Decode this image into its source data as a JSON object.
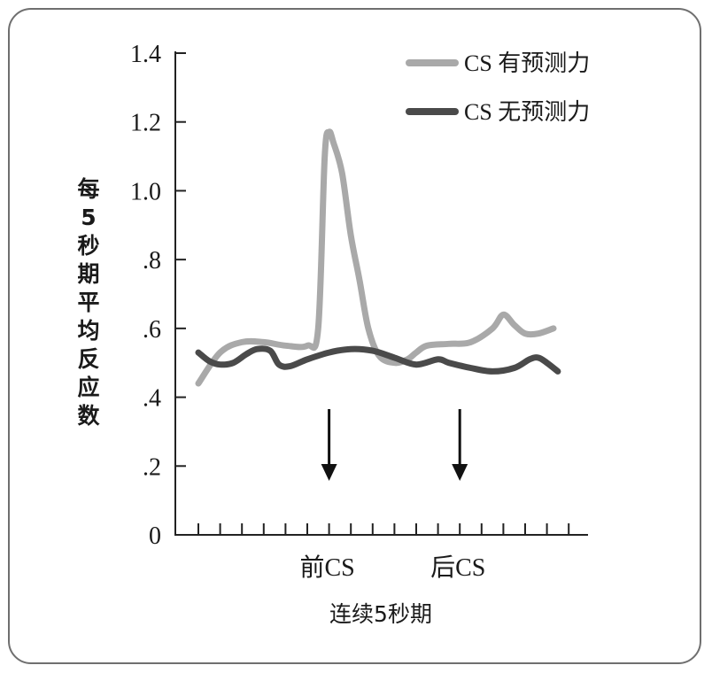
{
  "chart_data": {
    "type": "line",
    "xlabel": "连续5秒期",
    "ylabel": "每5秒期平均反应数",
    "ylim": [
      0,
      1.4
    ],
    "yticks": [
      {
        "value": 0,
        "label": "0"
      },
      {
        "value": 0.2,
        "label": ".2"
      },
      {
        "value": 0.4,
        "label": ".4"
      },
      {
        "value": 0.6,
        "label": ".6"
      },
      {
        "value": 0.8,
        "label": ".8"
      },
      {
        "value": 1.0,
        "label": "1.0"
      },
      {
        "value": 1.2,
        "label": "1.2"
      },
      {
        "value": 1.4,
        "label": "1.4"
      }
    ],
    "x_tick_count": 18,
    "x_annotations": [
      {
        "label": "前CS",
        "x": 7
      },
      {
        "label": "后CS",
        "x": 13
      }
    ],
    "legend_position": "top-right",
    "series": [
      {
        "name": "CS 有预测力",
        "color": "#a9a9a9",
        "points": [
          [
            1,
            0.44
          ],
          [
            2,
            0.53
          ],
          [
            3,
            0.56
          ],
          [
            4,
            0.56
          ],
          [
            5,
            0.55
          ],
          [
            6,
            0.55
          ],
          [
            6.5,
            0.6
          ],
          [
            6.8,
            1.1
          ],
          [
            7,
            1.17
          ],
          [
            7.2,
            1.14
          ],
          [
            7.6,
            1.05
          ],
          [
            8,
            0.87
          ],
          [
            8.4,
            0.74
          ],
          [
            8.8,
            0.6
          ],
          [
            9.3,
            0.52
          ],
          [
            10,
            0.5
          ],
          [
            10.6,
            0.51
          ],
          [
            11,
            0.53
          ],
          [
            11.5,
            0.55
          ],
          [
            12.5,
            0.555
          ],
          [
            13.5,
            0.56
          ],
          [
            14.5,
            0.6
          ],
          [
            15,
            0.64
          ],
          [
            15.5,
            0.61
          ],
          [
            16,
            0.585
          ],
          [
            16.6,
            0.585
          ],
          [
            17.3,
            0.6
          ]
        ]
      },
      {
        "name": "CS 无预测力",
        "color": "#4a4a4a",
        "points": [
          [
            1,
            0.53
          ],
          [
            1.5,
            0.505
          ],
          [
            2,
            0.495
          ],
          [
            2.6,
            0.5
          ],
          [
            3.2,
            0.525
          ],
          [
            3.7,
            0.54
          ],
          [
            4.3,
            0.535
          ],
          [
            4.7,
            0.495
          ],
          [
            5.2,
            0.49
          ],
          [
            6,
            0.51
          ],
          [
            7,
            0.53
          ],
          [
            8,
            0.54
          ],
          [
            9,
            0.535
          ],
          [
            10,
            0.515
          ],
          [
            11,
            0.495
          ],
          [
            12,
            0.51
          ],
          [
            12.5,
            0.5
          ],
          [
            13.5,
            0.485
          ],
          [
            14.5,
            0.475
          ],
          [
            15.5,
            0.485
          ],
          [
            16.2,
            0.51
          ],
          [
            16.6,
            0.515
          ],
          [
            17,
            0.5
          ],
          [
            17.5,
            0.475
          ]
        ]
      }
    ]
  }
}
